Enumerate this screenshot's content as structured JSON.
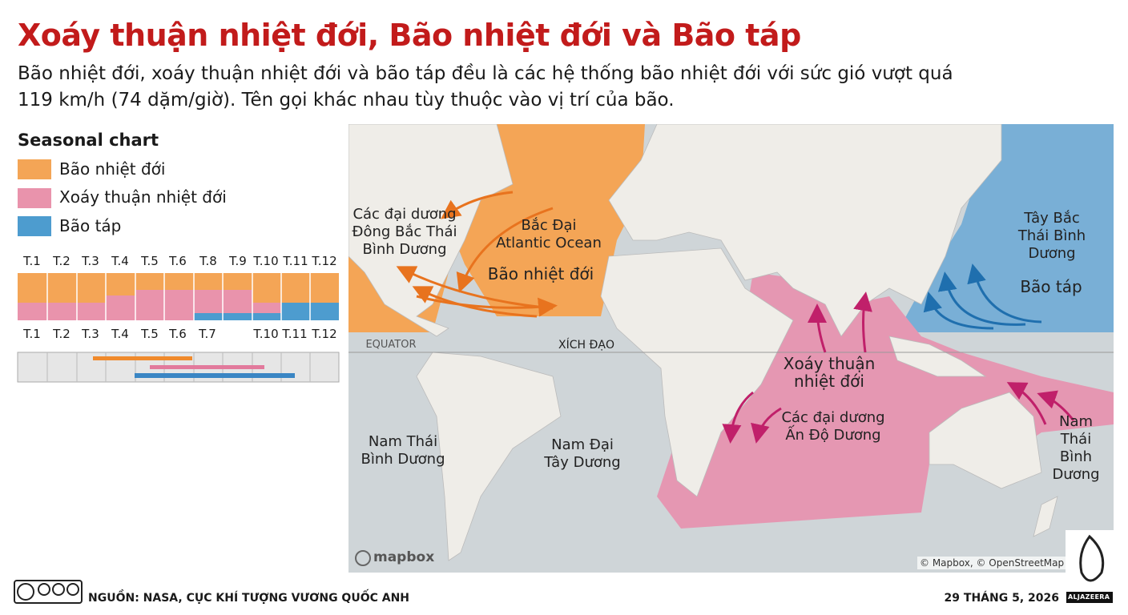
{
  "header": {
    "title": "Xoáy thuận nhiệt đới, Bão nhiệt đới và Bão táp",
    "subtitle": "Bão nhiệt đới, xoáy thuận nhiệt đới và bão táp đều là các hệ thống bão nhiệt đới với sức gió vượt quá 119 km/h (74 dặm/giờ). Tên gọi khác nhau tùy thuộc vào vị trí của bão."
  },
  "legend": {
    "title": "Seasonal chart",
    "items": [
      "Bão nhiệt đới",
      "Xoáy thuận nhiệt đới",
      "Bão táp"
    ]
  },
  "seasonal": {
    "months_top": [
      "T.1",
      "T.2",
      "T.3",
      "T.4",
      "T.5",
      "T.6",
      "T.8",
      "T.9",
      "T.10",
      "T.11",
      "T.12"
    ],
    "months_bottom": [
      "T.1",
      "T.2",
      "T.3",
      "T.4",
      "T.5",
      "T.6",
      "T.7",
      "T.10",
      "T.11",
      "T.12"
    ]
  },
  "map": {
    "labels": [
      "Các đại dương\nĐông Bắc Thái\nBình Dương",
      "Bắc Đại\nAtlantic Ocean",
      "Bão nhiệt đới",
      "EQUATOR",
      "XÍCH ĐẠO",
      "Xoáy thuận\nnhiệt đới",
      "Các đại dương\nẤn Độ Dương",
      "Tây Bắc\nThái Bình Dương",
      "Bão táp",
      "Nam Thái\nBình Dương",
      "Nam Đại\nTây Dương",
      "Nam Thái\nBình Dương"
    ],
    "provider": "mapbox",
    "attribution": "© Mapbox, © OpenStreetMap"
  },
  "footer": {
    "source": "NGUỒN: NASA, CỤC KHÍ TƯỢNG VƯƠNG QUỐC ANH",
    "date": "29 THÁNG 5, 2026",
    "brand": "ALJAZEERA"
  }
}
